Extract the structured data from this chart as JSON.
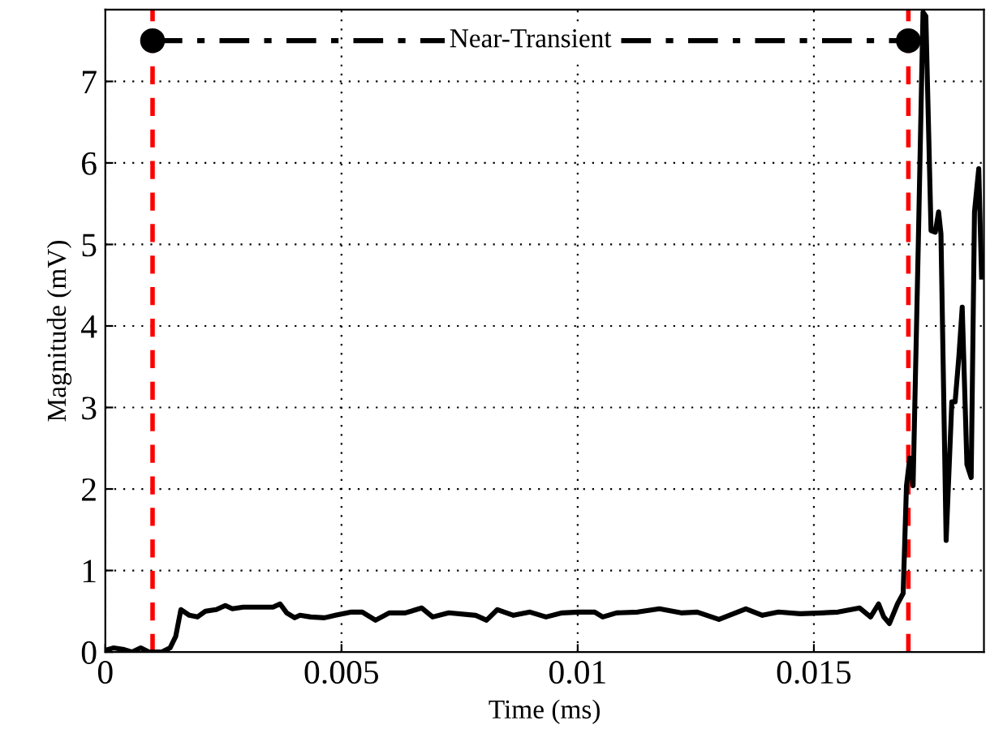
{
  "chart_data": {
    "type": "line",
    "xlabel": "Time (ms)",
    "ylabel": "Magnitude (mV)",
    "xlim": [
      0,
      0.0186
    ],
    "ylim": [
      0,
      7.88
    ],
    "xticks": [
      0,
      0.005,
      0.01,
      0.015
    ],
    "yticks": [
      0,
      1,
      2,
      3,
      4,
      5,
      6,
      7
    ],
    "grid": true,
    "series": [
      {
        "color": "#000000",
        "line_style": "solid",
        "marker": "none",
        "x": [
          0,
          0.00017,
          0.0004,
          0.00057,
          0.00075,
          0.00092,
          0.0012,
          0.00137,
          0.00149,
          0.0016,
          0.00178,
          0.00195,
          0.00212,
          0.00235,
          0.00254,
          0.00269,
          0.00292,
          0.00326,
          0.00355,
          0.0037,
          0.00384,
          0.00401,
          0.00412,
          0.00435,
          0.00464,
          0.00487,
          0.00521,
          0.00544,
          0.00572,
          0.00601,
          0.00635,
          0.0067,
          0.00693,
          0.00727,
          0.00784,
          0.00807,
          0.0083,
          0.00864,
          0.00899,
          0.00933,
          0.00967,
          0.01002,
          0.01036,
          0.01053,
          0.01082,
          0.01127,
          0.01173,
          0.01219,
          0.01253,
          0.01299,
          0.01356,
          0.01391,
          0.01425,
          0.01471,
          0.01517,
          0.01551,
          0.01597,
          0.0162,
          0.01637,
          0.01648,
          0.0166,
          0.01677,
          0.01689,
          0.01696,
          0.01703,
          0.0171,
          0.01721,
          0.01731,
          0.01737,
          0.01748,
          0.01757,
          0.01764,
          0.01769,
          0.0178,
          0.01792,
          0.01799,
          0.01807,
          0.01814,
          0.01824,
          0.01833,
          0.0184,
          0.01849,
          0.01855
        ],
        "values": [
          0.02,
          0.05,
          0.03,
          0,
          0.05,
          0,
          0,
          0.05,
          0.19,
          0.52,
          0.45,
          0.43,
          0.5,
          0.52,
          0.57,
          0.53,
          0.55,
          0.55,
          0.55,
          0.59,
          0.48,
          0.42,
          0.45,
          0.43,
          0.42,
          0.45,
          0.49,
          0.49,
          0.39,
          0.48,
          0.48,
          0.54,
          0.43,
          0.48,
          0.45,
          0.39,
          0.52,
          0.45,
          0.49,
          0.43,
          0.48,
          0.49,
          0.49,
          0.43,
          0.48,
          0.49,
          0.53,
          0.48,
          0.49,
          0.4,
          0.53,
          0.45,
          0.49,
          0.47,
          0.48,
          0.49,
          0.54,
          0.43,
          0.59,
          0.43,
          0.35,
          0.59,
          0.72,
          2.04,
          2.38,
          2.04,
          5.0,
          7.85,
          7.8,
          5.17,
          5.15,
          5.4,
          5.13,
          1.37,
          3.07,
          3.07,
          3.63,
          4.23,
          2.3,
          2.14,
          5.4,
          5.93,
          4.6
        ]
      },
      {
        "name": "Near-Transient",
        "color": "#000000",
        "line_style": "dashdot",
        "marker": "circle",
        "x": [
          0.001,
          0.017
        ],
        "values": [
          7.5,
          7.5
        ]
      }
    ],
    "ref_lines": [
      {
        "axis": "x",
        "value": 0.001,
        "color": "#ff0000",
        "line_style": "dashed"
      },
      {
        "axis": "x",
        "value": 0.017,
        "color": "#ff0000",
        "line_style": "dashed"
      }
    ]
  }
}
